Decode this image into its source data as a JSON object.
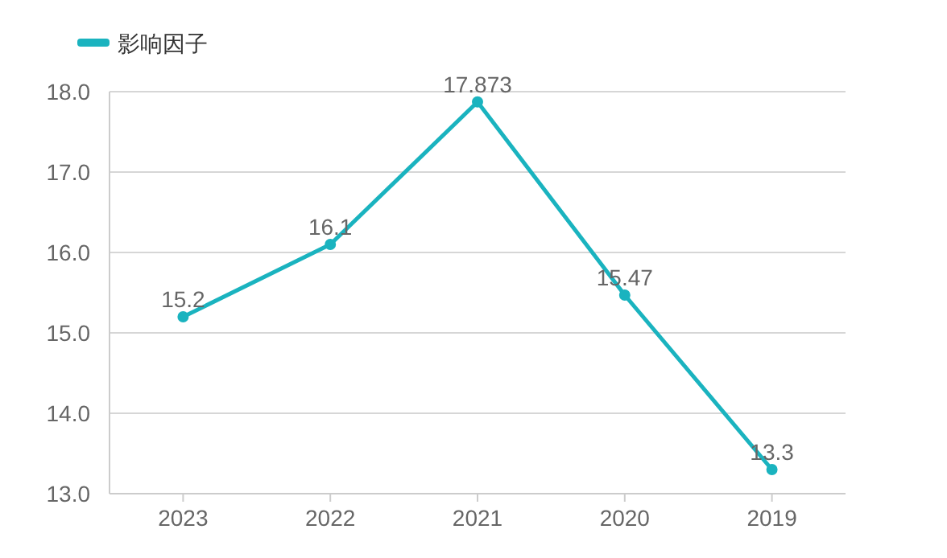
{
  "chart_data": {
    "type": "line",
    "categories": [
      "2023",
      "2022",
      "2021",
      "2020",
      "2019"
    ],
    "series": [
      {
        "name": "影响因子",
        "color": "#1ab3bf",
        "values": [
          15.2,
          16.1,
          17.873,
          15.47,
          13.3
        ]
      }
    ],
    "ylim": [
      13,
      18
    ],
    "yticks": [
      {
        "value": 13,
        "label": "13.0"
      },
      {
        "value": 14,
        "label": "14.0"
      },
      {
        "value": 15,
        "label": "15.0"
      },
      {
        "value": 16,
        "label": "16.0"
      },
      {
        "value": 17,
        "label": "17.0"
      },
      {
        "value": 18,
        "label": "18.0"
      }
    ],
    "grid": "y",
    "legend": "top left",
    "marker": "circle",
    "line_style": "solid",
    "data_labels": true
  }
}
